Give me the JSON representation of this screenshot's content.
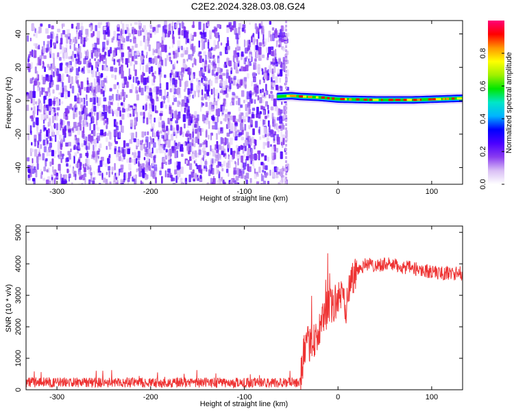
{
  "chart_data": [
    {
      "type": "heatmap",
      "title": "C2E2.2024.328.03.08.G24",
      "xlabel": "Height of straight line (km)",
      "ylabel": "Frequency (Hz)",
      "xlim": [
        -333,
        133
      ],
      "ylim": [
        -50,
        48
      ],
      "xticks": [
        "-300",
        "-200",
        "-100",
        "0",
        "100"
      ],
      "xtick_values": [
        -300,
        -200,
        -100,
        0,
        100
      ],
      "yticks": [
        "-40",
        "-20",
        "0",
        "20",
        "40"
      ],
      "ytick_values": [
        -40,
        -20,
        0,
        20,
        40
      ],
      "noise_region_x": [
        -333,
        -55
      ],
      "signal_band": {
        "x_range": [
          -65,
          133
        ],
        "frequency_hz": [
          {
            "x": -65,
            "y": 2.5
          },
          {
            "x": -50,
            "y": 3.0
          },
          {
            "x": -40,
            "y": 2.5
          },
          {
            "x": -20,
            "y": 2.0
          },
          {
            "x": 0,
            "y": 1.0
          },
          {
            "x": 40,
            "y": 0.5
          },
          {
            "x": 80,
            "y": 0.5
          },
          {
            "x": 133,
            "y": 1.5
          }
        ]
      },
      "colorbar": {
        "label": "Normalized spectral amplitude",
        "range": [
          0,
          1
        ],
        "ticks": [
          "0.0",
          "0.2",
          "0.4",
          "0.6",
          "0.8"
        ],
        "tick_values": [
          0.0,
          0.2,
          0.4,
          0.6,
          0.8
        ],
        "colors": [
          "#ffffff",
          "#d9bff5",
          "#8a3cf0",
          "#4b00ff",
          "#0000ff",
          "#00b4ff",
          "#00e6c8",
          "#00e600",
          "#a0f000",
          "#ffff00",
          "#ff9600",
          "#ff0000",
          "#ff0078"
        ]
      },
      "grid": false
    },
    {
      "type": "line",
      "xlabel": "Height of straight line (km)",
      "ylabel": "SNR (10 * v/v)",
      "xlim": [
        -333,
        133
      ],
      "ylim": [
        0,
        5200
      ],
      "xticks": [
        "-300",
        "-200",
        "-100",
        "0",
        "100"
      ],
      "xtick_values": [
        -300,
        -200,
        -100,
        0,
        100
      ],
      "yticks": [
        "0",
        "1000",
        "2000",
        "3000",
        "4000",
        "5000"
      ],
      "ytick_values": [
        0,
        1000,
        2000,
        3000,
        4000,
        5000
      ],
      "color": "#ee3333",
      "series": [
        {
          "x": [
            -333,
            -300,
            -250,
            -200,
            -150,
            -100,
            -60,
            -45,
            -40,
            -38,
            -35,
            -30,
            -25,
            -20,
            -15,
            -10,
            -5,
            0,
            5,
            8,
            12,
            20,
            30,
            40,
            50,
            60,
            70,
            80,
            90,
            100,
            110,
            120,
            133
          ],
          "y": [
            250,
            240,
            230,
            220,
            220,
            210,
            230,
            260,
            400,
            900,
            1300,
            1500,
            1600,
            1800,
            2300,
            2600,
            2700,
            2900,
            3000,
            2600,
            3300,
            3800,
            4000,
            3950,
            4000,
            3950,
            3900,
            3850,
            3800,
            3750,
            3700,
            3700,
            3700
          ]
        }
      ],
      "grid": false
    }
  ]
}
